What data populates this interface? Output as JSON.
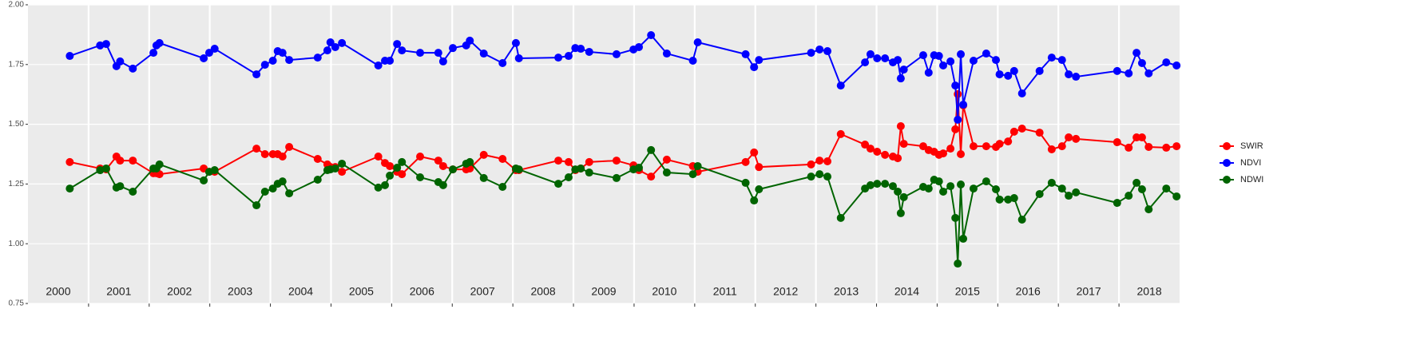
{
  "chart_data": {
    "type": "line",
    "x": [
      2000.69,
      2001.19,
      2001.29,
      2001.46,
      2001.52,
      2001.73,
      2002.07,
      2002.12,
      2002.17,
      2002.9,
      2002.99,
      2003.08,
      2003.77,
      2003.91,
      2004.04,
      2004.12,
      2004.2,
      2004.31,
      2004.78,
      2004.94,
      2004.99,
      2005.07,
      2005.18,
      2005.78,
      2005.89,
      2005.97,
      2006.09,
      2006.17,
      2006.47,
      2006.77,
      2006.85,
      2007.01,
      2007.23,
      2007.29,
      2007.52,
      2007.83,
      2008.05,
      2008.1,
      2008.75,
      2008.92,
      2009.03,
      2009.12,
      2009.26,
      2009.71,
      2009.99,
      2010.08,
      2010.28,
      2010.54,
      2010.97,
      2011.05,
      2011.84,
      2011.98,
      2012.06,
      2012.92,
      2013.06,
      2013.19,
      2013.41,
      2013.81,
      2013.9,
      2014.01,
      2014.14,
      2014.27,
      2014.35,
      2014.4,
      2014.45,
      2014.77,
      2014.86,
      2014.95,
      2015.03,
      2015.1,
      2015.22,
      2015.3,
      2015.34,
      2015.39,
      2015.43,
      2015.6,
      2015.81,
      2015.97,
      2016.03,
      2016.17,
      2016.27,
      2016.4,
      2016.69,
      2016.89,
      2017.06,
      2017.17,
      2017.29,
      2017.97,
      2018.16,
      2018.29,
      2018.38,
      2018.49,
      2018.78,
      2018.95
    ],
    "series": [
      {
        "name": "SWIR",
        "color": "#ff0000",
        "values": [
          1.342,
          1.315,
          1.311,
          1.365,
          1.348,
          1.348,
          1.295,
          1.295,
          1.291,
          1.315,
          1.301,
          1.301,
          1.398,
          1.375,
          1.375,
          1.375,
          1.365,
          1.405,
          1.355,
          1.332,
          1.321,
          1.321,
          1.301,
          1.365,
          1.338,
          1.325,
          1.301,
          1.291,
          1.365,
          1.348,
          1.325,
          1.311,
          1.311,
          1.315,
          1.372,
          1.355,
          1.308,
          1.308,
          1.348,
          1.342,
          1.308,
          1.315,
          1.342,
          1.348,
          1.328,
          1.308,
          1.281,
          1.352,
          1.325,
          1.301,
          1.342,
          1.382,
          1.321,
          1.332,
          1.348,
          1.345,
          1.459,
          1.415,
          1.398,
          1.385,
          1.372,
          1.365,
          1.358,
          1.492,
          1.418,
          1.408,
          1.392,
          1.385,
          1.372,
          1.378,
          1.398,
          1.479,
          1.626,
          1.375,
          1.579,
          1.408,
          1.408,
          1.405,
          1.418,
          1.428,
          1.469,
          1.482,
          1.465,
          1.395,
          1.408,
          1.445,
          1.439,
          1.425,
          1.402,
          1.445,
          1.445,
          1.405,
          1.402,
          1.408
        ]
      },
      {
        "name": "NDVI",
        "color": "#0000ff",
        "values": [
          1.786,
          1.83,
          1.836,
          1.743,
          1.763,
          1.733,
          1.799,
          1.83,
          1.84,
          1.776,
          1.799,
          1.816,
          1.709,
          1.749,
          1.766,
          1.806,
          1.799,
          1.769,
          1.779,
          1.809,
          1.843,
          1.823,
          1.84,
          1.746,
          1.766,
          1.766,
          1.836,
          1.809,
          1.799,
          1.799,
          1.763,
          1.819,
          1.83,
          1.85,
          1.796,
          1.756,
          1.84,
          1.776,
          1.779,
          1.786,
          1.819,
          1.816,
          1.803,
          1.793,
          1.813,
          1.823,
          1.873,
          1.796,
          1.766,
          1.843,
          1.793,
          1.739,
          1.769,
          1.799,
          1.813,
          1.806,
          1.662,
          1.759,
          1.793,
          1.776,
          1.776,
          1.759,
          1.769,
          1.692,
          1.729,
          1.789,
          1.716,
          1.789,
          1.786,
          1.746,
          1.763,
          1.662,
          1.519,
          1.793,
          1.582,
          1.766,
          1.796,
          1.769,
          1.709,
          1.703,
          1.723,
          1.629,
          1.723,
          1.779,
          1.769,
          1.709,
          1.699,
          1.723,
          1.713,
          1.799,
          1.756,
          1.713,
          1.759,
          1.746
        ]
      },
      {
        "name": "NDWI",
        "color": "#006400",
        "values": [
          1.231,
          1.308,
          1.315,
          1.235,
          1.241,
          1.218,
          1.315,
          1.315,
          1.332,
          1.265,
          1.301,
          1.308,
          1.161,
          1.218,
          1.231,
          1.251,
          1.261,
          1.211,
          1.268,
          1.308,
          1.311,
          1.315,
          1.335,
          1.235,
          1.245,
          1.285,
          1.318,
          1.342,
          1.278,
          1.258,
          1.245,
          1.311,
          1.335,
          1.342,
          1.275,
          1.238,
          1.315,
          1.311,
          1.251,
          1.278,
          1.311,
          1.315,
          1.298,
          1.275,
          1.311,
          1.318,
          1.392,
          1.298,
          1.291,
          1.325,
          1.255,
          1.181,
          1.228,
          1.281,
          1.291,
          1.281,
          1.108,
          1.231,
          1.245,
          1.251,
          1.251,
          1.241,
          1.218,
          1.128,
          1.195,
          1.238,
          1.231,
          1.268,
          1.261,
          1.218,
          1.241,
          1.108,
          0.917,
          1.248,
          1.021,
          1.231,
          1.261,
          1.228,
          1.185,
          1.185,
          1.191,
          1.101,
          1.208,
          1.255,
          1.231,
          1.201,
          1.215,
          1.171,
          1.201,
          1.255,
          1.228,
          1.144,
          1.231,
          1.198
        ]
      }
    ],
    "xlim": [
      2000,
      2019
    ],
    "xgrid": [
      2001,
      2002,
      2003,
      2004,
      2005,
      2006,
      2007,
      2008,
      2009,
      2010,
      2011,
      2012,
      2013,
      2014,
      2015,
      2016,
      2017,
      2018
    ],
    "xticks": [
      {
        "value": 2000.5,
        "label": "2000"
      },
      {
        "value": 2001.5,
        "label": "2001"
      },
      {
        "value": 2002.5,
        "label": "2002"
      },
      {
        "value": 2003.5,
        "label": "2003"
      },
      {
        "value": 2004.5,
        "label": "2004"
      },
      {
        "value": 2005.5,
        "label": "2005"
      },
      {
        "value": 2006.5,
        "label": "2006"
      },
      {
        "value": 2007.5,
        "label": "2007"
      },
      {
        "value": 2008.5,
        "label": "2008"
      },
      {
        "value": 2009.5,
        "label": "2009"
      },
      {
        "value": 2010.5,
        "label": "2010"
      },
      {
        "value": 2011.5,
        "label": "2011"
      },
      {
        "value": 2012.5,
        "label": "2012"
      },
      {
        "value": 2013.5,
        "label": "2013"
      },
      {
        "value": 2014.5,
        "label": "2014"
      },
      {
        "value": 2015.5,
        "label": "2015"
      },
      {
        "value": 2016.5,
        "label": "2016"
      },
      {
        "value": 2017.5,
        "label": "2017"
      },
      {
        "value": 2018.5,
        "label": "2018"
      }
    ],
    "ylim": [
      0.75,
      2.0
    ],
    "yticks": [
      0.75,
      {
        "value": 1.0,
        "label": "1.00"
      },
      1.25,
      {
        "value": 1.5,
        "label": "1.50"
      },
      1.75,
      {
        "value": 2.0,
        "label": "2.00"
      }
    ],
    "grid": true,
    "legend": "right"
  }
}
